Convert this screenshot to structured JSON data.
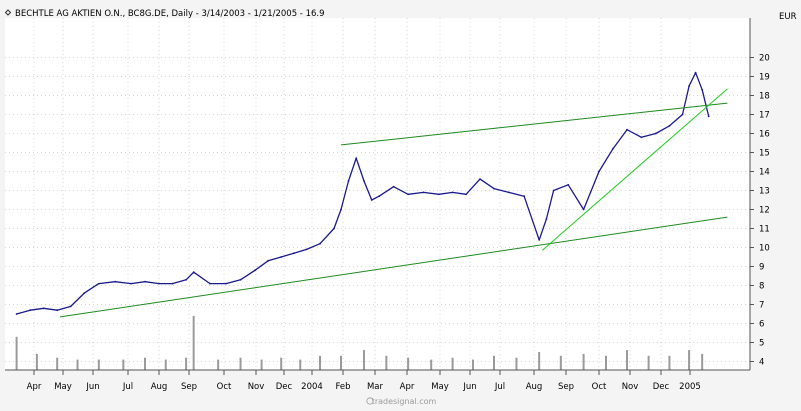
{
  "chart_data": {
    "type": "line",
    "style": "ohlc-bar",
    "title": "BECHTLE AG AKTIEN O.N., BC8G.DE, Daily - 3/14/2003 - 1/21/2005 - 16.9",
    "currency_label": "EUR",
    "watermark": "tradesignal.com",
    "ylim": [
      3.4,
      21.3
    ],
    "y_ticks": [
      "4",
      "5",
      "6",
      "7",
      "8",
      "9",
      "10",
      "11",
      "12",
      "13",
      "14",
      "15",
      "16",
      "17",
      "18",
      "19",
      "20"
    ],
    "x_ticks": [
      "Apr",
      "May",
      "Jun",
      "Jul",
      "Aug",
      "Sep",
      "Oct",
      "Nov",
      "Dec",
      "2004",
      "Feb",
      "Mar",
      "Apr",
      "May",
      "Jun",
      "Jul",
      "Aug",
      "Sep",
      "Oct",
      "Nov",
      "Dec",
      "2005"
    ],
    "grid": true,
    "price_series": {
      "name": "",
      "color": "#1a1a8c",
      "x": [
        "2003-03-14",
        "2003-03-28",
        "2003-04-11",
        "2003-04-25",
        "2003-05-09",
        "2003-05-23",
        "2003-06-06",
        "2003-06-20",
        "2003-07-04",
        "2003-07-18",
        "2003-08-01",
        "2003-08-15",
        "2003-08-29",
        "2003-09-05",
        "2003-09-19",
        "2003-10-03",
        "2003-10-17",
        "2003-10-31",
        "2003-11-14",
        "2003-11-28",
        "2003-12-12",
        "2003-12-26",
        "2004-01-09",
        "2004-01-23",
        "2004-01-30",
        "2004-02-06",
        "2004-02-13",
        "2004-02-20",
        "2004-02-27",
        "2004-03-05",
        "2004-03-19",
        "2004-04-02",
        "2004-04-16",
        "2004-04-30",
        "2004-05-14",
        "2004-05-28",
        "2004-06-11",
        "2004-06-25",
        "2004-07-09",
        "2004-07-23",
        "2004-08-06",
        "2004-08-13",
        "2004-08-20",
        "2004-09-03",
        "2004-09-17",
        "2004-10-01",
        "2004-10-15",
        "2004-10-29",
        "2004-11-12",
        "2004-11-26",
        "2004-12-10",
        "2004-12-24",
        "2004-12-31",
        "2005-01-07",
        "2005-01-14",
        "2005-01-21"
      ],
      "close": [
        6.5,
        6.7,
        6.8,
        6.7,
        6.9,
        7.6,
        8.1,
        8.2,
        8.1,
        8.2,
        8.1,
        8.1,
        8.3,
        8.7,
        8.1,
        8.1,
        8.3,
        8.8,
        9.3,
        9.5,
        9.7,
        9.9,
        10.2,
        11.0,
        12.0,
        13.5,
        14.7,
        13.5,
        12.5,
        12.7,
        13.2,
        12.8,
        12.9,
        12.8,
        12.9,
        12.8,
        13.6,
        13.1,
        12.9,
        12.7,
        10.4,
        11.5,
        13.0,
        13.3,
        12.0,
        14.0,
        15.2,
        16.2,
        15.8,
        16.0,
        16.4,
        17.0,
        18.5,
        19.2,
        18.3,
        16.9
      ]
    },
    "volume_series": {
      "name": "",
      "color": "#9a9a9a",
      "x": [
        "2003-03-14",
        "2003-04-04",
        "2003-04-25",
        "2003-05-16",
        "2003-06-06",
        "2003-06-27",
        "2003-07-18",
        "2003-08-08",
        "2003-08-29",
        "2003-09-05",
        "2003-09-26",
        "2003-10-17",
        "2003-11-07",
        "2003-11-28",
        "2003-12-19",
        "2004-01-09",
        "2004-01-30",
        "2004-02-20",
        "2004-03-12",
        "2004-04-02",
        "2004-04-23",
        "2004-05-14",
        "2004-06-04",
        "2004-06-25",
        "2004-07-16",
        "2004-08-06",
        "2004-08-27",
        "2004-09-17",
        "2004-10-08",
        "2004-10-29",
        "2004-11-19",
        "2004-12-10",
        "2004-12-31",
        "2005-01-14"
      ],
      "values_price_units": [
        5.3,
        4.4,
        4.2,
        4.1,
        4.1,
        4.1,
        4.2,
        4.1,
        4.2,
        6.4,
        4.1,
        4.2,
        4.1,
        4.2,
        4.1,
        4.3,
        4.3,
        4.6,
        4.3,
        4.2,
        4.1,
        4.2,
        4.1,
        4.3,
        4.2,
        4.5,
        4.3,
        4.4,
        4.3,
        4.6,
        4.3,
        4.3,
        4.6,
        4.4
      ]
    },
    "trendlines": [
      {
        "name": "",
        "color": "#1e8a1e",
        "x": [
          "2003-04-28",
          "2005-02-10"
        ],
        "y": [
          6.35,
          11.6
        ]
      },
      {
        "name": "",
        "color": "#1e8a1e",
        "x": [
          "2004-01-30",
          "2005-02-10"
        ],
        "y": [
          15.4,
          17.6
        ]
      },
      {
        "name": "",
        "color": "#22cc22",
        "x": [
          "2004-08-09",
          "2005-02-10"
        ],
        "y": [
          9.85,
          18.35
        ]
      }
    ]
  }
}
